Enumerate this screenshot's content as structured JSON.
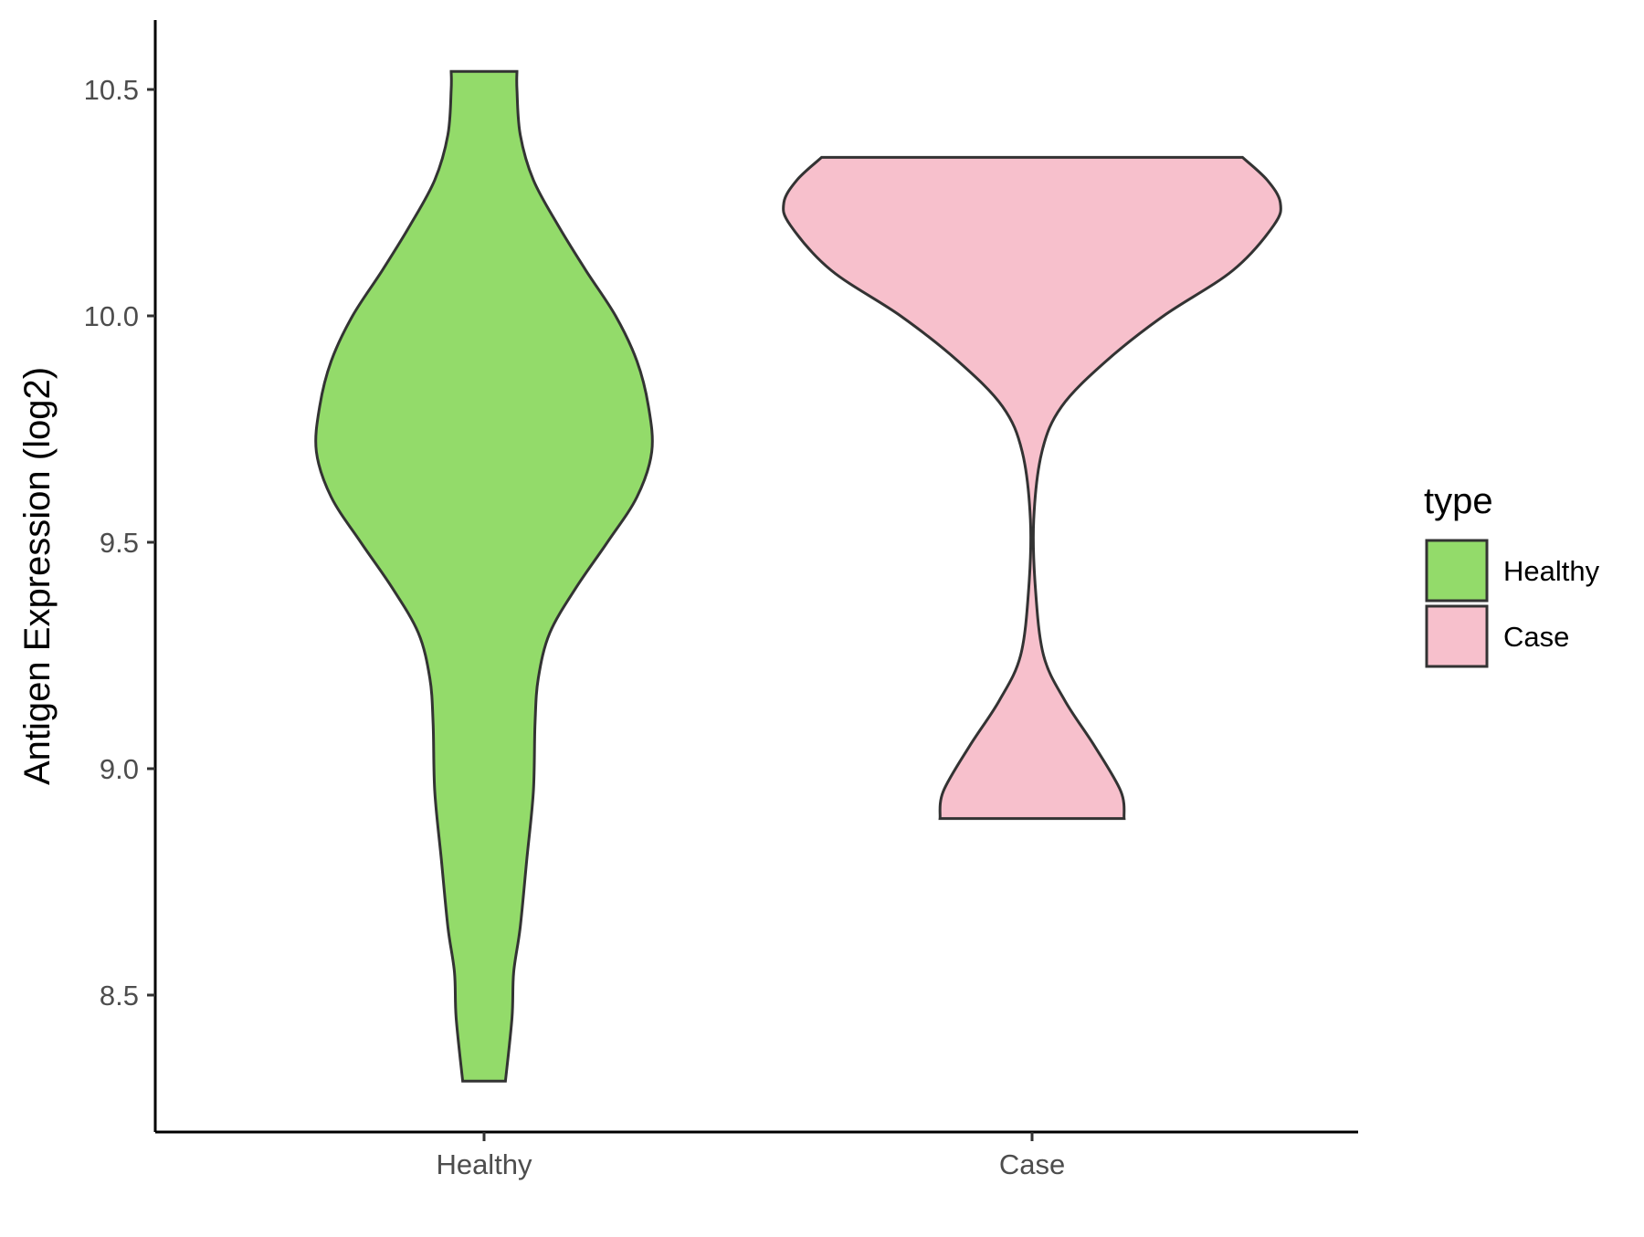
{
  "chart_data": {
    "type": "violin",
    "title": "",
    "xlabel": "",
    "ylabel": "Antigen Expression (log2)",
    "categories": [
      "Healthy",
      "Case"
    ],
    "y_ticks": [
      8.5,
      9.0,
      9.5,
      10.0,
      10.5
    ],
    "y_tick_labels": [
      "8.5",
      "9.0",
      "9.5",
      "10.0",
      "10.5"
    ],
    "ylim": [
      8.19,
      10.65
    ],
    "grid": false,
    "legend": {
      "title": "type",
      "position": "right",
      "entries": [
        {
          "label": "Healthy",
          "color": "#93DB6A"
        },
        {
          "label": "Case",
          "color": "#F7C0CC"
        }
      ]
    },
    "series": [
      {
        "category": "Healthy",
        "color": "#93DB6A",
        "y_min": 8.31,
        "y_max": 10.54,
        "density_profile": [
          {
            "y": 8.31,
            "w": 0.13
          },
          {
            "y": 8.45,
            "w": 0.17
          },
          {
            "y": 8.55,
            "w": 0.18
          },
          {
            "y": 8.65,
            "w": 0.22
          },
          {
            "y": 8.8,
            "w": 0.26
          },
          {
            "y": 8.95,
            "w": 0.3
          },
          {
            "y": 9.1,
            "w": 0.31
          },
          {
            "y": 9.2,
            "w": 0.33
          },
          {
            "y": 9.3,
            "w": 0.4
          },
          {
            "y": 9.4,
            "w": 0.56
          },
          {
            "y": 9.5,
            "w": 0.75
          },
          {
            "y": 9.6,
            "w": 0.93
          },
          {
            "y": 9.7,
            "w": 1.02
          },
          {
            "y": 9.8,
            "w": 1.0
          },
          {
            "y": 9.9,
            "w": 0.93
          },
          {
            "y": 10.0,
            "w": 0.8
          },
          {
            "y": 10.1,
            "w": 0.62
          },
          {
            "y": 10.2,
            "w": 0.45
          },
          {
            "y": 10.3,
            "w": 0.3
          },
          {
            "y": 10.4,
            "w": 0.22
          },
          {
            "y": 10.5,
            "w": 0.2
          },
          {
            "y": 10.54,
            "w": 0.2
          }
        ]
      },
      {
        "category": "Case",
        "color": "#F7C0CC",
        "y_min": 8.89,
        "y_max": 10.35,
        "density_profile": [
          {
            "y": 8.89,
            "w": 0.56
          },
          {
            "y": 8.95,
            "w": 0.54
          },
          {
            "y": 9.05,
            "w": 0.38
          },
          {
            "y": 9.15,
            "w": 0.2
          },
          {
            "y": 9.25,
            "w": 0.07
          },
          {
            "y": 9.4,
            "w": 0.02
          },
          {
            "y": 9.55,
            "w": 0.01
          },
          {
            "y": 9.7,
            "w": 0.06
          },
          {
            "y": 9.8,
            "w": 0.18
          },
          {
            "y": 9.9,
            "w": 0.45
          },
          {
            "y": 10.0,
            "w": 0.8
          },
          {
            "y": 10.1,
            "w": 1.22
          },
          {
            "y": 10.2,
            "w": 1.47
          },
          {
            "y": 10.25,
            "w": 1.51
          },
          {
            "y": 10.3,
            "w": 1.43
          },
          {
            "y": 10.35,
            "w": 1.28
          }
        ]
      }
    ]
  }
}
